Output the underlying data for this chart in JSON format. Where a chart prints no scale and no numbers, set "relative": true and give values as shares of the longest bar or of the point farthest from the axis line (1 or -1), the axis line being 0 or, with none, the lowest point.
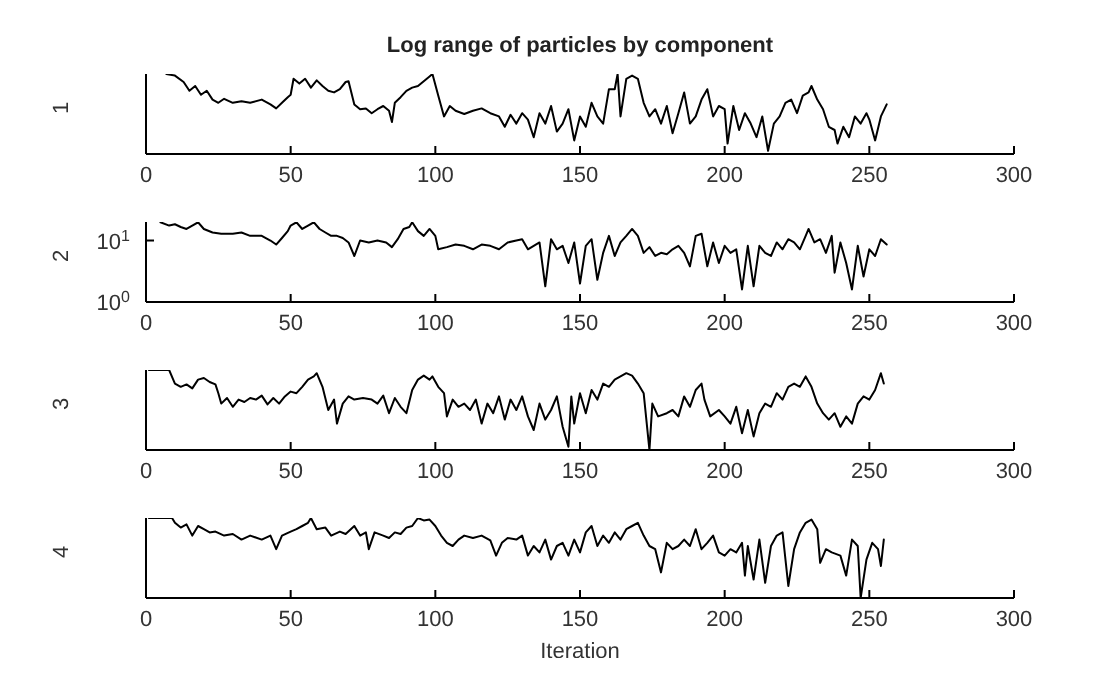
{
  "chart_data": [
    {
      "type": "line",
      "title": "Log range of particles by component",
      "ylabel": "1",
      "color": "#000000",
      "relative": true,
      "xlim": [
        0,
        300
      ],
      "xticks": [
        0,
        50,
        100,
        150,
        200,
        250,
        300
      ],
      "x": [
        7,
        10,
        13,
        15,
        17,
        19,
        21,
        23,
        25,
        27,
        30,
        33,
        36,
        40,
        43,
        45,
        47,
        49,
        50,
        51,
        53,
        55,
        57,
        59,
        61,
        63,
        65,
        67,
        69,
        70,
        72,
        74,
        76,
        78,
        80,
        82,
        84,
        85,
        86,
        88,
        90,
        92,
        94,
        96,
        98,
        99,
        101,
        103,
        105,
        107,
        110,
        113,
        116,
        119,
        122,
        124,
        126,
        128,
        130,
        132,
        134,
        136,
        138,
        140,
        142,
        144,
        146,
        148,
        150,
        152,
        154,
        156,
        158,
        160,
        162,
        163,
        164,
        166,
        168,
        170,
        172,
        174,
        176,
        178,
        180,
        182,
        184,
        186,
        188,
        190,
        192,
        194,
        196,
        198,
        200,
        201,
        203,
        205,
        207,
        209,
        211,
        213,
        215,
        217,
        219,
        221,
        223,
        225,
        227,
        229,
        230,
        232,
        234,
        236,
        238,
        239,
        241,
        243,
        245,
        247,
        249,
        250,
        252,
        254,
        256
      ],
      "values": [
        1.0,
        0.98,
        0.9,
        0.79,
        0.85,
        0.74,
        0.79,
        0.68,
        0.64,
        0.69,
        0.64,
        0.66,
        0.64,
        0.68,
        0.62,
        0.57,
        0.64,
        0.71,
        0.74,
        0.94,
        0.88,
        0.94,
        0.83,
        0.92,
        0.85,
        0.79,
        0.77,
        0.81,
        0.9,
        0.91,
        0.62,
        0.56,
        0.57,
        0.51,
        0.56,
        0.6,
        0.54,
        0.4,
        0.64,
        0.71,
        0.79,
        0.83,
        0.85,
        0.91,
        0.97,
        1.0,
        0.73,
        0.47,
        0.6,
        0.54,
        0.5,
        0.54,
        0.57,
        0.51,
        0.47,
        0.34,
        0.49,
        0.38,
        0.51,
        0.43,
        0.21,
        0.51,
        0.38,
        0.6,
        0.28,
        0.38,
        0.56,
        0.17,
        0.47,
        0.34,
        0.64,
        0.47,
        0.38,
        0.81,
        0.81,
        1.0,
        0.47,
        0.94,
        0.98,
        0.94,
        0.64,
        0.47,
        0.56,
        0.38,
        0.6,
        0.26,
        0.51,
        0.77,
        0.38,
        0.47,
        0.68,
        0.81,
        0.47,
        0.6,
        0.56,
        0.13,
        0.6,
        0.3,
        0.51,
        0.38,
        0.21,
        0.47,
        0.04,
        0.38,
        0.47,
        0.64,
        0.68,
        0.51,
        0.73,
        0.77,
        0.85,
        0.68,
        0.56,
        0.34,
        0.3,
        0.13,
        0.34,
        0.21,
        0.47,
        0.38,
        0.51,
        0.43,
        0.17,
        0.47,
        0.62
      ]
    },
    {
      "type": "line",
      "ylabel": "2",
      "color": "#000000",
      "log": "y",
      "ylim": [
        1,
        20
      ],
      "yticks": [
        {
          "value": 1,
          "label": "10$^{0}$"
        },
        {
          "value": 10,
          "label": "10$^{1}$"
        }
      ],
      "xlim": [
        0,
        300
      ],
      "xticks": [
        0,
        50,
        100,
        150,
        200,
        250,
        300
      ],
      "x": [
        5,
        8,
        10,
        12,
        14,
        16,
        18,
        20,
        23,
        26,
        30,
        33,
        36,
        40,
        43,
        45,
        47,
        49,
        50,
        52,
        54,
        56,
        58,
        60,
        62,
        64,
        66,
        68,
        70,
        72,
        74,
        77,
        80,
        83,
        85,
        87,
        89,
        91,
        92,
        94,
        96,
        98,
        100,
        101,
        104,
        107,
        110,
        113,
        116,
        119,
        122,
        125,
        128,
        130,
        132,
        134,
        136,
        138,
        140,
        142,
        144,
        146,
        148,
        150,
        152,
        154,
        156,
        158,
        160,
        162,
        164,
        166,
        168,
        170,
        172,
        174,
        176,
        178,
        180,
        182,
        184,
        186,
        188,
        190,
        192,
        194,
        196,
        198,
        200,
        202,
        204,
        206,
        208,
        210,
        212,
        214,
        216,
        218,
        220,
        222,
        224,
        226,
        228,
        229,
        231,
        233,
        235,
        237,
        238,
        240,
        242,
        244,
        246,
        248,
        250,
        252,
        254,
        256
      ],
      "values": [
        19.8,
        17.5,
        18.4,
        16.6,
        15.4,
        17.5,
        19.8,
        15.4,
        13.5,
        12.9,
        12.9,
        13.5,
        11.9,
        11.9,
        10.0,
        8.6,
        11.0,
        14.2,
        17.5,
        19.8,
        15.4,
        17.5,
        19.8,
        15.4,
        13.5,
        11.9,
        11.9,
        11.0,
        9.3,
        5.6,
        10.0,
        9.3,
        10.0,
        9.3,
        7.8,
        10.5,
        15.4,
        16.6,
        19.8,
        14.2,
        11.9,
        15.4,
        11.9,
        7.2,
        7.8,
        8.6,
        8.2,
        7.2,
        8.6,
        8.2,
        7.2,
        9.3,
        10.0,
        10.5,
        7.2,
        8.2,
        9.3,
        1.8,
        10.5,
        7.2,
        8.2,
        4.3,
        9.3,
        2.0,
        8.2,
        10.5,
        2.3,
        6.3,
        11.9,
        5.6,
        9.3,
        11.9,
        15.4,
        11.9,
        6.3,
        7.8,
        5.6,
        6.3,
        6.0,
        7.2,
        8.2,
        6.3,
        3.8,
        11.9,
        12.9,
        3.8,
        9.3,
        4.3,
        8.2,
        6.3,
        7.2,
        1.6,
        8.2,
        1.8,
        8.2,
        6.3,
        5.6,
        9.3,
        7.2,
        10.5,
        9.3,
        7.2,
        11.9,
        15.4,
        9.3,
        10.5,
        6.3,
        11.9,
        3.0,
        9.3,
        4.3,
        1.6,
        8.2,
        2.6,
        7.2,
        5.6,
        10.5,
        8.6
      ]
    },
    {
      "type": "line",
      "ylabel": "3",
      "color": "#000000",
      "relative": true,
      "xlim": [
        0,
        300
      ],
      "xticks": [
        0,
        50,
        100,
        150,
        200,
        250,
        300
      ],
      "x": [
        1,
        8,
        10,
        12,
        14,
        16,
        18,
        20,
        22,
        24,
        25,
        26,
        28,
        30,
        32,
        34,
        36,
        38,
        40,
        42,
        44,
        46,
        48,
        50,
        52,
        54,
        56,
        58,
        59,
        61,
        63,
        65,
        66,
        68,
        70,
        72,
        75,
        78,
        80,
        82,
        84,
        86,
        88,
        90,
        92,
        94,
        96,
        98,
        99,
        101,
        103,
        104,
        106,
        108,
        110,
        112,
        114,
        116,
        118,
        120,
        122,
        124,
        126,
        128,
        130,
        132,
        134,
        136,
        138,
        140,
        142,
        144,
        146,
        147,
        148,
        150,
        152,
        154,
        156,
        158,
        160,
        162,
        164,
        166,
        168,
        170,
        172,
        174,
        175,
        177,
        180,
        182,
        184,
        186,
        188,
        190,
        192,
        193,
        195,
        198,
        200,
        202,
        204,
        206,
        208,
        210,
        212,
        214,
        216,
        218,
        220,
        222,
        224,
        226,
        228,
        230,
        232,
        234,
        236,
        238,
        240,
        242,
        244,
        246,
        248,
        250,
        252,
        254,
        255
      ],
      "values": [
        1.0,
        1.0,
        0.83,
        0.79,
        0.82,
        0.77,
        0.88,
        0.9,
        0.85,
        0.82,
        0.71,
        0.58,
        0.65,
        0.54,
        0.63,
        0.6,
        0.65,
        0.63,
        0.68,
        0.57,
        0.65,
        0.58,
        0.67,
        0.73,
        0.71,
        0.79,
        0.88,
        0.92,
        0.96,
        0.79,
        0.5,
        0.63,
        0.33,
        0.58,
        0.67,
        0.63,
        0.65,
        0.63,
        0.58,
        0.68,
        0.46,
        0.65,
        0.54,
        0.46,
        0.75,
        0.88,
        0.93,
        0.88,
        0.92,
        0.79,
        0.71,
        0.42,
        0.63,
        0.54,
        0.58,
        0.5,
        0.63,
        0.33,
        0.58,
        0.46,
        0.67,
        0.38,
        0.63,
        0.5,
        0.67,
        0.42,
        0.25,
        0.58,
        0.38,
        0.5,
        0.67,
        0.29,
        0.04,
        0.67,
        0.33,
        0.71,
        0.46,
        0.75,
        0.63,
        0.83,
        0.79,
        0.88,
        0.92,
        0.96,
        0.93,
        0.83,
        0.71,
        0,
        0.58,
        0.42,
        0.46,
        0.5,
        0.42,
        0.67,
        0.54,
        0.75,
        0.83,
        0.63,
        0.42,
        0.5,
        0.42,
        0.33,
        0.54,
        0.21,
        0.5,
        0.17,
        0.46,
        0.58,
        0.54,
        0.71,
        0.63,
        0.79,
        0.83,
        0.79,
        0.92,
        0.79,
        0.58,
        0.46,
        0.38,
        0.46,
        0.29,
        0.42,
        0.33,
        0.58,
        0.67,
        0.63,
        0.75,
        0.96,
        0.83
      ]
    },
    {
      "type": "line",
      "ylabel": "4",
      "xlabel": "Iteration",
      "color": "#000000",
      "relative": true,
      "xlim": [
        0,
        300
      ],
      "xticks": [
        0,
        50,
        100,
        150,
        200,
        250,
        300
      ],
      "x": [
        1,
        9,
        10,
        12,
        14,
        16,
        18,
        20,
        22,
        24,
        27,
        30,
        33,
        36,
        40,
        43,
        45,
        47,
        50,
        52,
        54,
        56,
        57,
        59,
        62,
        64,
        67,
        69,
        72,
        74,
        76,
        77,
        79,
        82,
        84,
        86,
        88,
        90,
        92,
        94,
        96,
        98,
        100,
        102,
        104,
        106,
        108,
        110,
        113,
        116,
        119,
        121,
        123,
        125,
        128,
        130,
        132,
        134,
        136,
        138,
        140,
        142,
        144,
        146,
        148,
        150,
        152,
        154,
        156,
        158,
        160,
        162,
        164,
        166,
        168,
        170,
        172,
        174,
        176,
        178,
        180,
        182,
        184,
        186,
        188,
        190,
        192,
        194,
        196,
        198,
        200,
        202,
        204,
        206,
        207,
        208,
        210,
        212,
        214,
        216,
        218,
        220,
        222,
        224,
        226,
        228,
        230,
        232,
        233,
        235,
        237,
        240,
        242,
        244,
        246,
        247,
        249,
        251,
        253,
        254,
        255
      ],
      "values": [
        1.0,
        1.0,
        0.94,
        0.88,
        0.92,
        0.78,
        0.9,
        0.86,
        0.82,
        0.83,
        0.78,
        0.8,
        0.73,
        0.78,
        0.73,
        0.78,
        0.61,
        0.78,
        0.83,
        0.86,
        0.9,
        0.94,
        1.0,
        0.86,
        0.88,
        0.78,
        0.83,
        0.8,
        0.9,
        0.78,
        0.82,
        0.61,
        0.82,
        0.78,
        0.75,
        0.82,
        0.8,
        0.88,
        0.9,
        1.0,
        0.97,
        0.98,
        0.9,
        0.78,
        0.69,
        0.65,
        0.73,
        0.78,
        0.75,
        0.78,
        0.72,
        0.53,
        0.69,
        0.75,
        0.73,
        0.78,
        0.53,
        0.65,
        0.57,
        0.73,
        0.48,
        0.65,
        0.69,
        0.53,
        0.73,
        0.57,
        0.82,
        0.9,
        0.65,
        0.78,
        0.69,
        0.82,
        0.73,
        0.86,
        0.9,
        0.94,
        0.78,
        0.65,
        0.61,
        0.32,
        0.69,
        0.61,
        0.65,
        0.73,
        0.65,
        0.86,
        0.61,
        0.69,
        0.78,
        0.57,
        0.53,
        0.61,
        0.57,
        0.69,
        0.28,
        0.65,
        0.23,
        0.73,
        0.19,
        0.65,
        0.78,
        0.82,
        0.15,
        0.61,
        0.82,
        0.94,
        0.98,
        0.86,
        0.44,
        0.61,
        0.57,
        0.53,
        0.28,
        0.73,
        0.65,
        0,
        0.48,
        0.69,
        0.61,
        0.4,
        0.73
      ]
    }
  ]
}
